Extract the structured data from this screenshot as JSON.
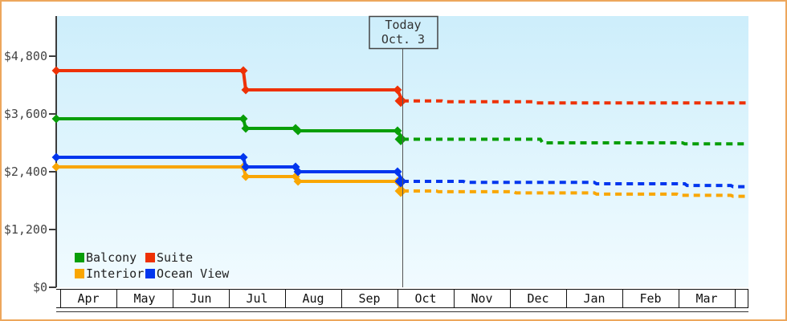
{
  "frame_border_color": "#eda75c",
  "chart_data": {
    "type": "line",
    "x_axis": {
      "months": [
        "Apr",
        "May",
        "Jun",
        "Jul",
        "Aug",
        "Sep",
        "Oct",
        "Nov",
        "Dec",
        "Jan",
        "Feb",
        "Mar"
      ]
    },
    "y_axis": {
      "tick_labels": [
        "$0",
        "$1,200",
        "$2,400",
        "$3,600",
        "$4,800"
      ],
      "tick_values": [
        0,
        1200,
        2400,
        3600,
        4800
      ],
      "ylim": [
        0,
        5600
      ]
    },
    "today_annotation": {
      "label_line1": "Today",
      "label_line2": "Oct. 3",
      "month_position": 6.086
    },
    "legend_position": "bottom-left-inside",
    "grid": "off",
    "plot_bg_top": "#cdeefb",
    "plot_bg_bottom": "#f1fbff",
    "series": [
      {
        "name": "Balcony",
        "color": "#089e08",
        "history": [
          [
            -0.071,
            3500
          ],
          [
            3.257,
            3500
          ],
          [
            3.3,
            3300
          ],
          [
            4.186,
            3300
          ],
          [
            4.23,
            3250
          ],
          [
            6.0,
            3250
          ],
          [
            6.086,
            3075
          ]
        ],
        "forecast": [
          [
            6.086,
            3075
          ],
          [
            8.54,
            3075
          ],
          [
            8.58,
            3000
          ],
          [
            11.07,
            3000
          ],
          [
            11.11,
            2980
          ],
          [
            12.23,
            2980
          ]
        ]
      },
      {
        "name": "Suite",
        "color": "#ee3105",
        "history": [
          [
            -0.071,
            4500
          ],
          [
            3.257,
            4500
          ],
          [
            3.3,
            4100
          ],
          [
            6.0,
            4100
          ],
          [
            6.086,
            3870
          ]
        ],
        "forecast": [
          [
            6.086,
            3870
          ],
          [
            6.79,
            3870
          ],
          [
            6.83,
            3855
          ],
          [
            8.4,
            3855
          ],
          [
            8.44,
            3830
          ],
          [
            12.23,
            3830
          ]
        ]
      },
      {
        "name": "Interior",
        "color": "#f9a602",
        "history": [
          [
            -0.071,
            2500
          ],
          [
            3.257,
            2500
          ],
          [
            3.3,
            2300
          ],
          [
            4.186,
            2300
          ],
          [
            4.23,
            2200
          ],
          [
            6.0,
            2200
          ],
          [
            6.086,
            2000
          ]
        ],
        "forecast": [
          [
            6.086,
            2000
          ],
          [
            6.69,
            2000
          ],
          [
            6.73,
            1985
          ],
          [
            8.07,
            1985
          ],
          [
            8.11,
            1960
          ],
          [
            9.5,
            1960
          ],
          [
            9.54,
            1935
          ],
          [
            10.97,
            1935
          ],
          [
            11.01,
            1910
          ],
          [
            11.93,
            1910
          ],
          [
            11.97,
            1890
          ],
          [
            12.23,
            1890
          ]
        ]
      },
      {
        "name": "Ocean View",
        "color": "#0236ee",
        "history": [
          [
            -0.071,
            2700
          ],
          [
            3.257,
            2700
          ],
          [
            3.3,
            2500
          ],
          [
            4.186,
            2500
          ],
          [
            4.23,
            2400
          ],
          [
            6.0,
            2400
          ],
          [
            6.086,
            2200
          ]
        ],
        "forecast": [
          [
            6.086,
            2200
          ],
          [
            7.17,
            2200
          ],
          [
            7.21,
            2180
          ],
          [
            9.5,
            2180
          ],
          [
            9.54,
            2150
          ],
          [
            11.11,
            2150
          ],
          [
            11.15,
            2115
          ],
          [
            11.93,
            2115
          ],
          [
            11.97,
            2090
          ],
          [
            12.23,
            2090
          ]
        ]
      }
    ],
    "legend_order": [
      0,
      1,
      2,
      3
    ]
  }
}
